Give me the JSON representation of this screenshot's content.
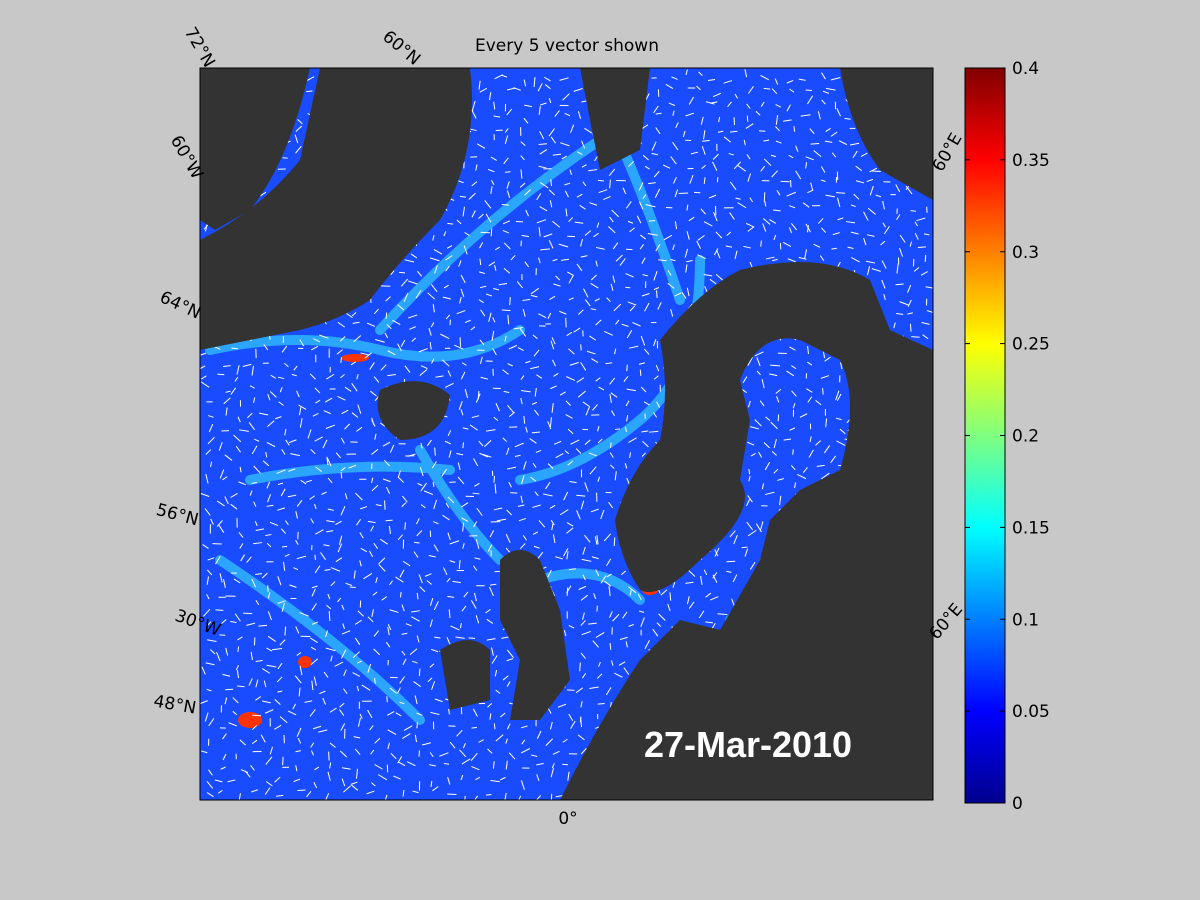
{
  "title": "Every 5 vector shown",
  "date_label": "27-Mar-2010",
  "graticule_labels": [
    "72°N",
    "60°N",
    "60°W",
    "64°N",
    "56°N",
    "30°W",
    "48°N",
    "0°",
    "60°E",
    "60°E"
  ],
  "colorbar": {
    "clim": [
      0,
      0.4
    ],
    "ticks": [
      0,
      0.05,
      0.1,
      0.15,
      0.2,
      0.25,
      0.3,
      0.35,
      0.4
    ]
  }
}
